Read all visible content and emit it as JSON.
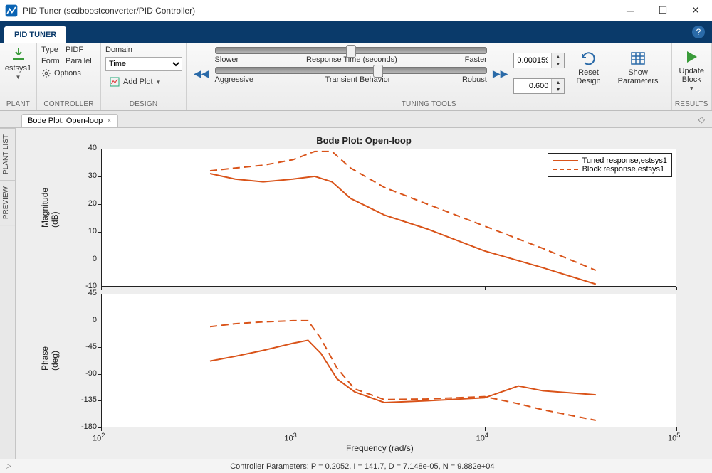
{
  "window": {
    "title": "PID Tuner (scdboostconverter/PID Controller)"
  },
  "tabstrip": {
    "active_tab": "PID TUNER"
  },
  "toolstrip": {
    "plant": {
      "section_label": "PLANT",
      "selected": "estsys1"
    },
    "controller": {
      "section_label": "CONTROLLER",
      "type_label": "Type",
      "type_value": "PIDF",
      "form_label": "Form",
      "form_value": "Parallel",
      "options_label": "Options"
    },
    "design": {
      "section_label": "DESIGN",
      "domain_label": "Domain",
      "domain_value": "Time",
      "addplot_label": "Add Plot"
    },
    "tuning": {
      "section_label": "TUNING TOOLS",
      "slower_label": "Slower",
      "response_time_label": "Response Time (seconds)",
      "faster_label": "Faster",
      "aggressive_label": "Aggressive",
      "transient_label": "Transient Behavior",
      "robust_label": "Robust",
      "response_value": "0.000159",
      "transient_value": "0.600",
      "response_slider_pos": 0.5,
      "transient_slider_pos": 0.6,
      "reset_label": "Reset\nDesign",
      "show_params_label": "Show\nParameters"
    },
    "results": {
      "section_label": "RESULTS",
      "update_label": "Update\nBlock"
    }
  },
  "doctab": {
    "title": "Bode Plot: Open-loop"
  },
  "sidetabs": {
    "plant_list": "PLANT LIST",
    "preview": "PREVIEW"
  },
  "plot": {
    "title": "Bode Plot: Open-loop",
    "legend": {
      "tuned": "Tuned response,estsys1",
      "block": "Block response,estsys1"
    },
    "colors": {
      "series": "#d95319",
      "axis": "#222222",
      "bg": "#ffffff",
      "panel_bg": "#eeeeee"
    },
    "xaxis": {
      "label": "Frequency  (rad/s)",
      "scale": "log",
      "lim": [
        100,
        100000
      ],
      "ticks": [
        100,
        1000,
        10000,
        100000
      ],
      "tick_labels": [
        "10^2",
        "10^3",
        "10^4",
        "10^5"
      ]
    },
    "magnitude": {
      "ylabel": "Magnitude (dB)",
      "ylim": [
        -10,
        40
      ],
      "ytick_step": 10,
      "tuned": {
        "x": [
          370,
          500,
          700,
          1000,
          1300,
          1600,
          2000,
          3000,
          5000,
          10000,
          20000,
          38000
        ],
        "y": [
          31,
          29,
          28,
          29,
          30,
          28,
          22,
          16,
          11,
          3,
          -3,
          -9
        ]
      },
      "block": {
        "x": [
          370,
          500,
          700,
          1000,
          1300,
          1600,
          2000,
          3000,
          5000,
          10000,
          20000,
          38000
        ],
        "y": [
          32,
          33,
          34,
          36,
          39,
          39,
          33,
          26,
          20,
          12,
          4,
          -4
        ]
      }
    },
    "phase": {
      "ylabel": "Phase (deg)",
      "ylim": [
        -180,
        45
      ],
      "yticks": [
        -180,
        -135,
        -90,
        -45,
        0,
        45
      ],
      "tuned": {
        "x": [
          370,
          500,
          700,
          1000,
          1200,
          1400,
          1700,
          2100,
          3000,
          5000,
          10000,
          15000,
          20000,
          38000
        ],
        "y": [
          -68,
          -60,
          -50,
          -38,
          -33,
          -55,
          -98,
          -120,
          -138,
          -135,
          -130,
          -110,
          -118,
          -125
        ]
      },
      "block": {
        "x": [
          370,
          500,
          700,
          1000,
          1200,
          1400,
          1700,
          2100,
          3000,
          5000,
          10000,
          15000,
          20000,
          38000
        ],
        "y": [
          -10,
          -5,
          -2,
          0,
          0,
          -30,
          -80,
          -115,
          -133,
          -132,
          -128,
          -140,
          -150,
          -168
        ]
      }
    }
  },
  "statusbar": {
    "params": "Controller Parameters: P = 0.2052, I = 141.7, D = 7.148e-05, N = 9.882e+04"
  }
}
